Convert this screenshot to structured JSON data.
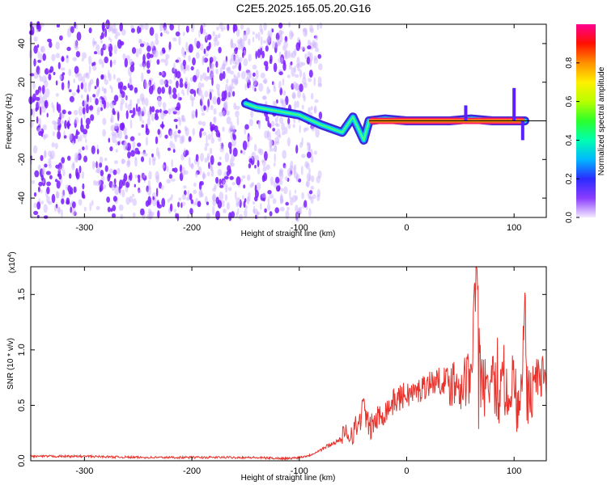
{
  "title": "C2E5.2025.165.05.20.G16",
  "colors": {
    "snr_line": "#e8322c",
    "spectro_dense": "#7a1cff",
    "spectro_light": "#cdb4ff",
    "axis": "#000000"
  },
  "chart_data": [
    {
      "type": "heatmap",
      "name": "spectrogram",
      "xlabel": "Height of straight line (km)",
      "ylabel": "Frequency (Hz)",
      "xlim": [
        -350,
        130
      ],
      "ylim": [
        -50,
        50
      ],
      "xticks": [
        -300,
        -200,
        -100,
        0,
        100
      ],
      "xtick_labels": [
        "-300",
        "-200",
        "-100",
        "0",
        "100"
      ],
      "yticks": [
        -40,
        -20,
        0,
        20,
        40
      ],
      "ytick_labels": [
        "-40",
        "-20",
        "0",
        "20",
        "40"
      ],
      "colorbar": {
        "label": "Normalized spectral amplitude",
        "range": [
          0.0,
          1.0
        ],
        "ticks": [
          0.0,
          0.2,
          0.4,
          0.6,
          0.8
        ],
        "tick_labels": [
          "0.0",
          "0.2",
          "0.4",
          "0.6",
          "0.8"
        ]
      },
      "signal_ridge": {
        "x": [
          -150,
          -140,
          -120,
          -100,
          -80,
          -60,
          -50,
          -40,
          -35,
          -20,
          0,
          20,
          40,
          60,
          80,
          100,
          110
        ],
        "y": [
          9,
          7,
          5,
          3,
          -2,
          -6,
          2,
          -10,
          0,
          1,
          0,
          0,
          0,
          1,
          0,
          0,
          0
        ]
      },
      "reference_line_y": 0,
      "noise_region_x": [
        -350,
        -100
      ]
    },
    {
      "type": "line",
      "name": "snr",
      "xlabel": "Height of straight line (km)",
      "ylabel": "SNR (10 * v/v)",
      "y_multiplier_label": "(x10",
      "y_multiplier_exp": "4",
      "y_multiplier_close": ")",
      "xlim": [
        -350,
        130
      ],
      "ylim": [
        0,
        1.75
      ],
      "xticks": [
        -300,
        -200,
        -100,
        0,
        100
      ],
      "xtick_labels": [
        "-300",
        "-200",
        "-100",
        "0",
        "100"
      ],
      "yticks": [
        0.0,
        0.5,
        1.0,
        1.5
      ],
      "ytick_labels": [
        "0.0",
        "0.5",
        "1.0",
        "1.5"
      ],
      "series": [
        {
          "x": [
            -350,
            -300,
            -250,
            -200,
            -150,
            -110,
            -100,
            -90,
            -80,
            -70,
            -60,
            -50,
            -45,
            -40,
            -35,
            -30,
            -20,
            -10,
            0,
            10,
            20,
            30,
            40,
            50,
            60,
            65,
            70,
            75,
            80,
            85,
            90,
            95,
            100,
            105,
            110,
            115,
            120,
            125,
            130
          ],
          "y": [
            0.04,
            0.04,
            0.03,
            0.03,
            0.03,
            0.02,
            0.03,
            0.05,
            0.1,
            0.15,
            0.2,
            0.27,
            0.32,
            0.5,
            0.28,
            0.35,
            0.45,
            0.55,
            0.6,
            0.62,
            0.7,
            0.72,
            0.73,
            0.7,
            0.74,
            1.75,
            0.72,
            0.55,
            0.78,
            0.5,
            0.72,
            0.6,
            0.75,
            0.3,
            1.3,
            0.55,
            0.75,
            0.75,
            0.78
          ]
        }
      ]
    }
  ]
}
